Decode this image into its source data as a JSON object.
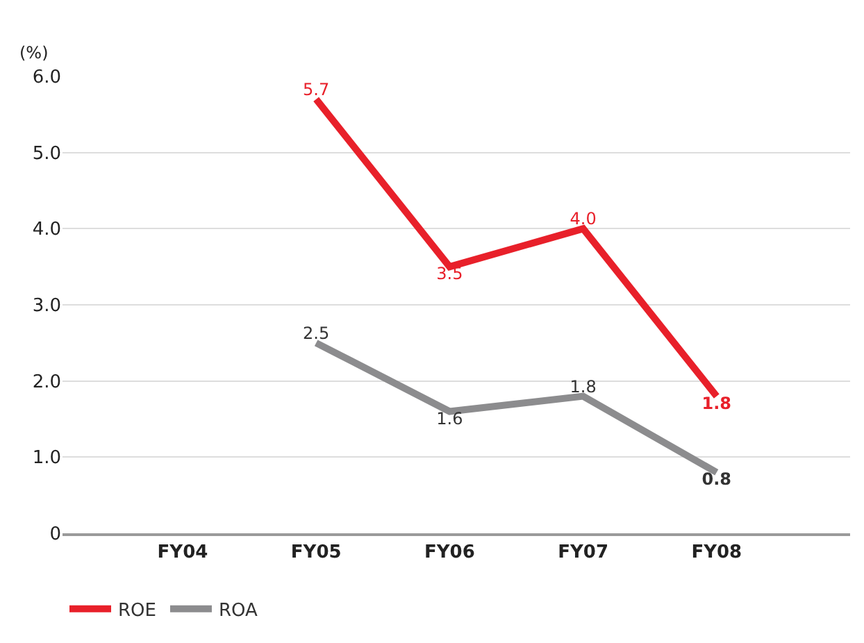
{
  "chart_data": {
    "type": "line",
    "ylabel": "(%)",
    "categories": [
      "FY04",
      "FY05",
      "FY06",
      "FY07",
      "FY08"
    ],
    "series": [
      {
        "name": "ROE",
        "color": "#e8202a",
        "values": [
          null,
          5.7,
          3.5,
          4.0,
          1.8
        ],
        "value_labels": [
          null,
          "5.7",
          "3.5",
          "4.0",
          "1.8"
        ]
      },
      {
        "name": "ROA",
        "color": "#8c8c8e",
        "values": [
          null,
          2.5,
          1.6,
          1.8,
          0.8
        ],
        "value_labels": [
          null,
          "2.5",
          "1.6",
          "1.8",
          "0.8"
        ]
      }
    ],
    "ylim": [
      0,
      6
    ],
    "yticks": [
      0,
      {
        "value": 1,
        "label": "1.0"
      },
      {
        "value": 2,
        "label": "2.0"
      },
      {
        "value": 3,
        "label": "3.0"
      },
      {
        "value": 4,
        "label": "4.0"
      },
      {
        "value": 5,
        "label": "5.0"
      },
      {
        "value": 6,
        "label": "6.0"
      }
    ],
    "grid": "y",
    "legend": "bottom left",
    "marker": "none",
    "line_style": "solid"
  }
}
